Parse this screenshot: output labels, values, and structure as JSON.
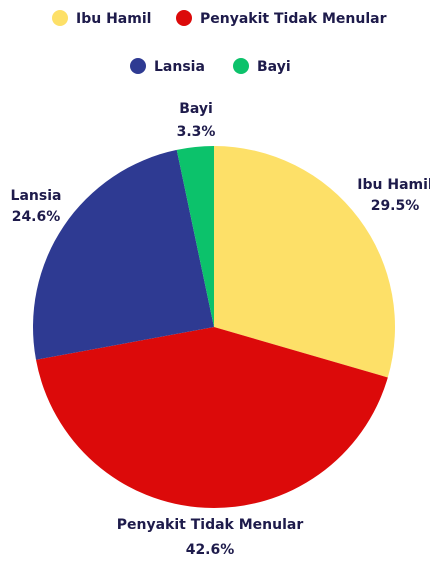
{
  "chart_data": {
    "type": "pie",
    "title": "",
    "slices": [
      {
        "label": "Ibu Hamil",
        "value": 29.5,
        "display": "29.5%",
        "color": "#fde068"
      },
      {
        "label": "Penyakit Tidak Menular",
        "value": 42.6,
        "display": "42.6%",
        "color": "#dc0a0a"
      },
      {
        "label": "Lansia",
        "value": 24.6,
        "display": "24.6%",
        "color": "#2e3a92"
      },
      {
        "label": "Bayi",
        "value": 3.3,
        "display": "3.3%",
        "color": "#0cc26b"
      }
    ],
    "legend": {
      "placement": "top",
      "rows": [
        [
          "Ibu Hamil",
          "Penyakit Tidak Menular"
        ],
        [
          "Lansia",
          "Bayi"
        ]
      ]
    }
  }
}
